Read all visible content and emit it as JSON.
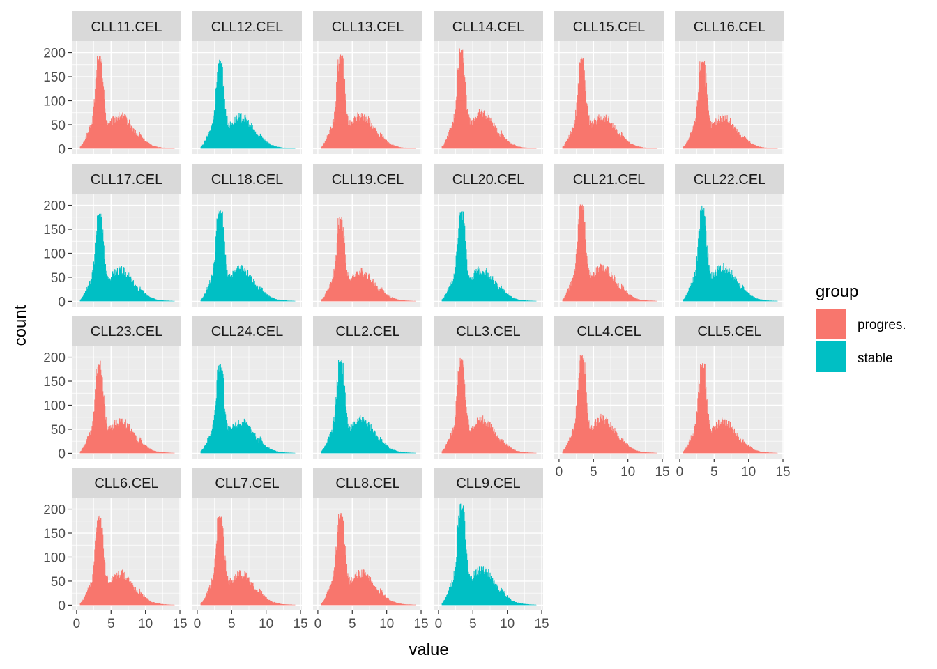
{
  "chart_data": {
    "type": "bar",
    "subtype": "faceted-histogram",
    "xlabel": "value",
    "ylabel": "count",
    "xlim": [
      0,
      15
    ],
    "ylim": [
      0,
      200
    ],
    "x_ticks": [
      0,
      5,
      10,
      15
    ],
    "y_ticks": [
      0,
      50,
      100,
      150,
      200
    ],
    "grid": true,
    "legend": {
      "title": "group",
      "position": "right",
      "entries": [
        {
          "label": "progres.",
          "color": "#F8766D"
        },
        {
          "label": "stable",
          "color": "#00BFC4"
        }
      ]
    },
    "colors": {
      "progres.": "#F8766D",
      "stable": "#00BFC4",
      "panel_bg": "#EBEBEB",
      "strip_bg": "#D9D9D9"
    },
    "facets": [
      {
        "label": "CLL11.CEL",
        "group": "progres.",
        "peak": 195
      },
      {
        "label": "CLL12.CEL",
        "group": "stable",
        "peak": 187
      },
      {
        "label": "CLL13.CEL",
        "group": "progres.",
        "peak": 196
      },
      {
        "label": "CLL14.CEL",
        "group": "progres.",
        "peak": 212
      },
      {
        "label": "CLL15.CEL",
        "group": "progres.",
        "peak": 190
      },
      {
        "label": "CLL16.CEL",
        "group": "progres.",
        "peak": 188
      },
      {
        "label": "CLL17.CEL",
        "group": "stable",
        "peak": 185
      },
      {
        "label": "CLL18.CEL",
        "group": "stable",
        "peak": 193
      },
      {
        "label": "CLL19.CEL",
        "group": "progres.",
        "peak": 176
      },
      {
        "label": "CLL20.CEL",
        "group": "stable",
        "peak": 188
      },
      {
        "label": "CLL21.CEL",
        "group": "progres.",
        "peak": 202
      },
      {
        "label": "CLL22.CEL",
        "group": "stable",
        "peak": 200
      },
      {
        "label": "CLL23.CEL",
        "group": "progres.",
        "peak": 194
      },
      {
        "label": "CLL24.CEL",
        "group": "stable",
        "peak": 188
      },
      {
        "label": "CLL2.CEL",
        "group": "stable",
        "peak": 198
      },
      {
        "label": "CLL3.CEL",
        "group": "progres.",
        "peak": 200
      },
      {
        "label": "CLL4.CEL",
        "group": "progres.",
        "peak": 205
      },
      {
        "label": "CLL5.CEL",
        "group": "progres.",
        "peak": 188
      },
      {
        "label": "CLL6.CEL",
        "group": "progres.",
        "peak": 188
      },
      {
        "label": "CLL7.CEL",
        "group": "progres.",
        "peak": 188
      },
      {
        "label": "CLL8.CEL",
        "group": "progres.",
        "peak": 193
      },
      {
        "label": "CLL9.CEL",
        "group": "stable",
        "peak": 212
      }
    ]
  }
}
